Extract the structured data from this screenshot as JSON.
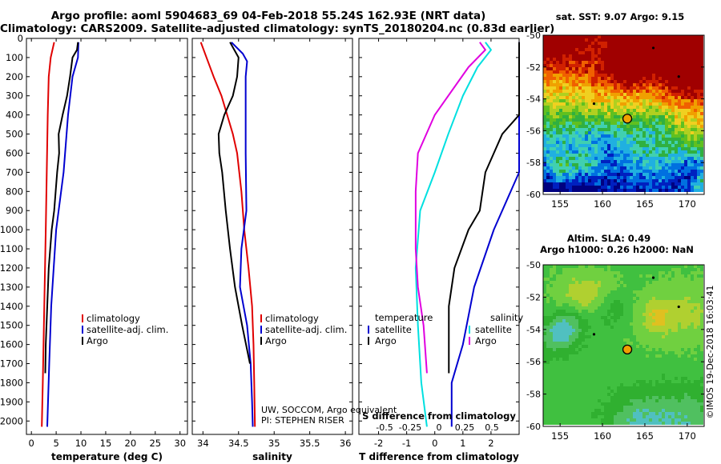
{
  "titles": {
    "line1": "Argo profile: aoml 5904683_69 04-Feb-2018 55.24S 162.93E (NRT data)",
    "line2": "Climatology: CARS2009. Satellite-adjusted climatology: synTS_20180204.nc (0.83d earlier)"
  },
  "colors": {
    "climatology": "#e00000",
    "satellite": "#0000d0",
    "argo": "#000000",
    "sat_salinity": "#00e0e0",
    "argo_salinity": "#e000e0"
  },
  "depth_axis": {
    "ticks": [
      "0",
      "100",
      "200",
      "300",
      "400",
      "500",
      "600",
      "700",
      "800",
      "900",
      "1000",
      "1100",
      "1200",
      "1300",
      "1400",
      "1500",
      "1600",
      "1700",
      "1800",
      "1900",
      "2000"
    ],
    "range": [
      0,
      2070
    ]
  },
  "panel_temp": {
    "xlabel": "temperature (deg C)",
    "xticks": [
      "0",
      "5",
      "10",
      "15",
      "20",
      "25",
      "30"
    ],
    "xrange": [
      -1,
      31.5
    ],
    "legend": [
      "climatology",
      "satellite-adj. clim.",
      "Argo"
    ]
  },
  "panel_sal": {
    "xlabel": "salinity",
    "xticks": [
      "34",
      "34.5",
      "35",
      "35.5",
      "36"
    ],
    "xrange": [
      33.85,
      36.1
    ],
    "legend": [
      "climatology",
      "satellite-adj. clim.",
      "Argo"
    ],
    "credit1": "UW, SOCCOM, Argo equivalent",
    "credit2": "PI: STEPHEN RISER"
  },
  "panel_diff": {
    "xlabel": "T difference from climatology",
    "xticks": [
      "-2",
      "-1",
      "0",
      "1",
      "2"
    ],
    "xrange": [
      -2.7,
      3.0
    ],
    "s_label": "S difference from climatology",
    "s_ticks": [
      "-0.5",
      "-0.25",
      "0",
      "0.25",
      "0.5"
    ],
    "legend_temp_title": "temperature",
    "legend_sal_title": "salinity",
    "legend_temp": [
      "satellite",
      "Argo"
    ],
    "legend_sal": [
      "satellite",
      "Argo"
    ]
  },
  "map_sst": {
    "title": "sat. SST: 9.07 Argo: 9.15",
    "lat_ticks": [
      "-50",
      "-52",
      "-54",
      "-56",
      "-58",
      "-60"
    ],
    "lon_ticks": [
      "155",
      "160",
      "165",
      "170"
    ]
  },
  "map_sla": {
    "title1": "Altim. SLA: 0.49",
    "title2": "Argo h1000: 0.26 h2000: NaN",
    "lat_ticks": [
      "-50",
      "-52",
      "-54",
      "-56",
      "-58",
      "-60"
    ],
    "lon_ticks": [
      "155",
      "160",
      "165",
      "170"
    ]
  },
  "watermark": "©IMOS 19-Dec-2018 16:03:41",
  "chart_data": {
    "type": "line",
    "y_axis": "depth (dbar), increasing downward",
    "temperature": {
      "series": [
        {
          "name": "climatology",
          "points": [
            [
              4.6,
              20
            ],
            [
              3.9,
              100
            ],
            [
              3.5,
              200
            ],
            [
              3.3,
              400
            ],
            [
              3.1,
              700
            ],
            [
              2.9,
              1000
            ],
            [
              2.6,
              1400
            ],
            [
              2.3,
              1800
            ],
            [
              2.1,
              2030
            ]
          ]
        },
        {
          "name": "satellite-adj. clim.",
          "points": [
            [
              9.5,
              20
            ],
            [
              9.4,
              100
            ],
            [
              8.3,
              200
            ],
            [
              7.4,
              400
            ],
            [
              6.5,
              700
            ],
            [
              5.0,
              1000
            ],
            [
              4.0,
              1400
            ],
            [
              3.6,
              1700
            ],
            [
              3.2,
              2030
            ]
          ]
        },
        {
          "name": "Argo",
          "points": [
            [
              9.4,
              20
            ],
            [
              9.2,
              60
            ],
            [
              8.3,
              100
            ],
            [
              7.8,
              200
            ],
            [
              7.2,
              300
            ],
            [
              6.3,
              400
            ],
            [
              5.5,
              500
            ],
            [
              5.6,
              600
            ],
            [
              5.2,
              700
            ],
            [
              4.9,
              800
            ],
            [
              4.6,
              900
            ],
            [
              4.1,
              1000
            ],
            [
              3.5,
              1200
            ],
            [
              3.2,
              1400
            ],
            [
              2.9,
              1600
            ],
            [
              2.8,
              1750
            ]
          ]
        }
      ]
    },
    "salinity": {
      "series": [
        {
          "name": "climatology",
          "points": [
            [
              33.97,
              20
            ],
            [
              34.05,
              100
            ],
            [
              34.15,
              200
            ],
            [
              34.26,
              300
            ],
            [
              34.34,
              400
            ],
            [
              34.42,
              500
            ],
            [
              34.48,
              600
            ],
            [
              34.54,
              800
            ],
            [
              34.58,
              1000
            ],
            [
              34.64,
              1200
            ],
            [
              34.69,
              1400
            ],
            [
              34.71,
              1600
            ],
            [
              34.72,
              1800
            ],
            [
              34.73,
              2030
            ]
          ]
        },
        {
          "name": "satellite-adj. clim.",
          "points": [
            [
              34.4,
              20
            ],
            [
              34.56,
              80
            ],
            [
              34.62,
              120
            ],
            [
              34.6,
              200
            ],
            [
              34.6,
              600
            ],
            [
              34.61,
              900
            ],
            [
              34.54,
              1100
            ],
            [
              34.52,
              1300
            ],
            [
              34.62,
              1500
            ],
            [
              34.67,
              1700
            ],
            [
              34.69,
              1900
            ],
            [
              34.7,
              2030
            ]
          ]
        },
        {
          "name": "Argo",
          "points": [
            [
              34.38,
              20
            ],
            [
              34.5,
              100
            ],
            [
              34.48,
              200
            ],
            [
              34.42,
              300
            ],
            [
              34.3,
              400
            ],
            [
              34.22,
              500
            ],
            [
              34.23,
              600
            ],
            [
              34.27,
              700
            ],
            [
              34.32,
              900
            ],
            [
              34.38,
              1100
            ],
            [
              34.45,
              1300
            ],
            [
              34.55,
              1500
            ],
            [
              34.66,
              1700
            ]
          ]
        }
      ]
    },
    "differences": {
      "series": [
        {
          "name": "temperature satellite",
          "points": [
            [
              4.9,
              20
            ],
            [
              5.4,
              100
            ],
            [
              4.8,
              200
            ],
            [
              4.1,
              400
            ],
            [
              3.4,
              700
            ],
            [
              2.1,
              1000
            ],
            [
              1.4,
              1300
            ],
            [
              1.0,
              1600
            ],
            [
              0.6,
              1800
            ],
            [
              0.6,
              2030
            ]
          ]
        },
        {
          "name": "temperature Argo",
          "points": [
            [
              4.9,
              20
            ],
            [
              5.1,
              100
            ],
            [
              4.3,
              200
            ],
            [
              3.0,
              400
            ],
            [
              2.4,
              500
            ],
            [
              2.1,
              600
            ],
            [
              1.8,
              700
            ],
            [
              1.6,
              900
            ],
            [
              1.2,
              1000
            ],
            [
              0.7,
              1200
            ],
            [
              0.5,
              1400
            ],
            [
              0.5,
              1750
            ]
          ]
        },
        {
          "name": "salinity satellite",
          "points": [
            [
              0.45,
              20
            ],
            [
              0.5,
              60
            ],
            [
              0.38,
              150
            ],
            [
              0.25,
              300
            ],
            [
              0.12,
              500
            ],
            [
              0.0,
              700
            ],
            [
              -0.13,
              900
            ],
            [
              -0.17,
              1200
            ],
            [
              -0.15,
              1500
            ],
            [
              -0.12,
              1800
            ],
            [
              -0.07,
              2030
            ]
          ]
        },
        {
          "name": "salinity Argo",
          "points": [
            [
              0.4,
              20
            ],
            [
              0.45,
              60
            ],
            [
              0.3,
              150
            ],
            [
              0.0,
              400
            ],
            [
              -0.15,
              600
            ],
            [
              -0.17,
              800
            ],
            [
              -0.17,
              1100
            ],
            [
              -0.15,
              1300
            ],
            [
              -0.1,
              1500
            ],
            [
              -0.07,
              1750
            ]
          ]
        }
      ]
    }
  }
}
